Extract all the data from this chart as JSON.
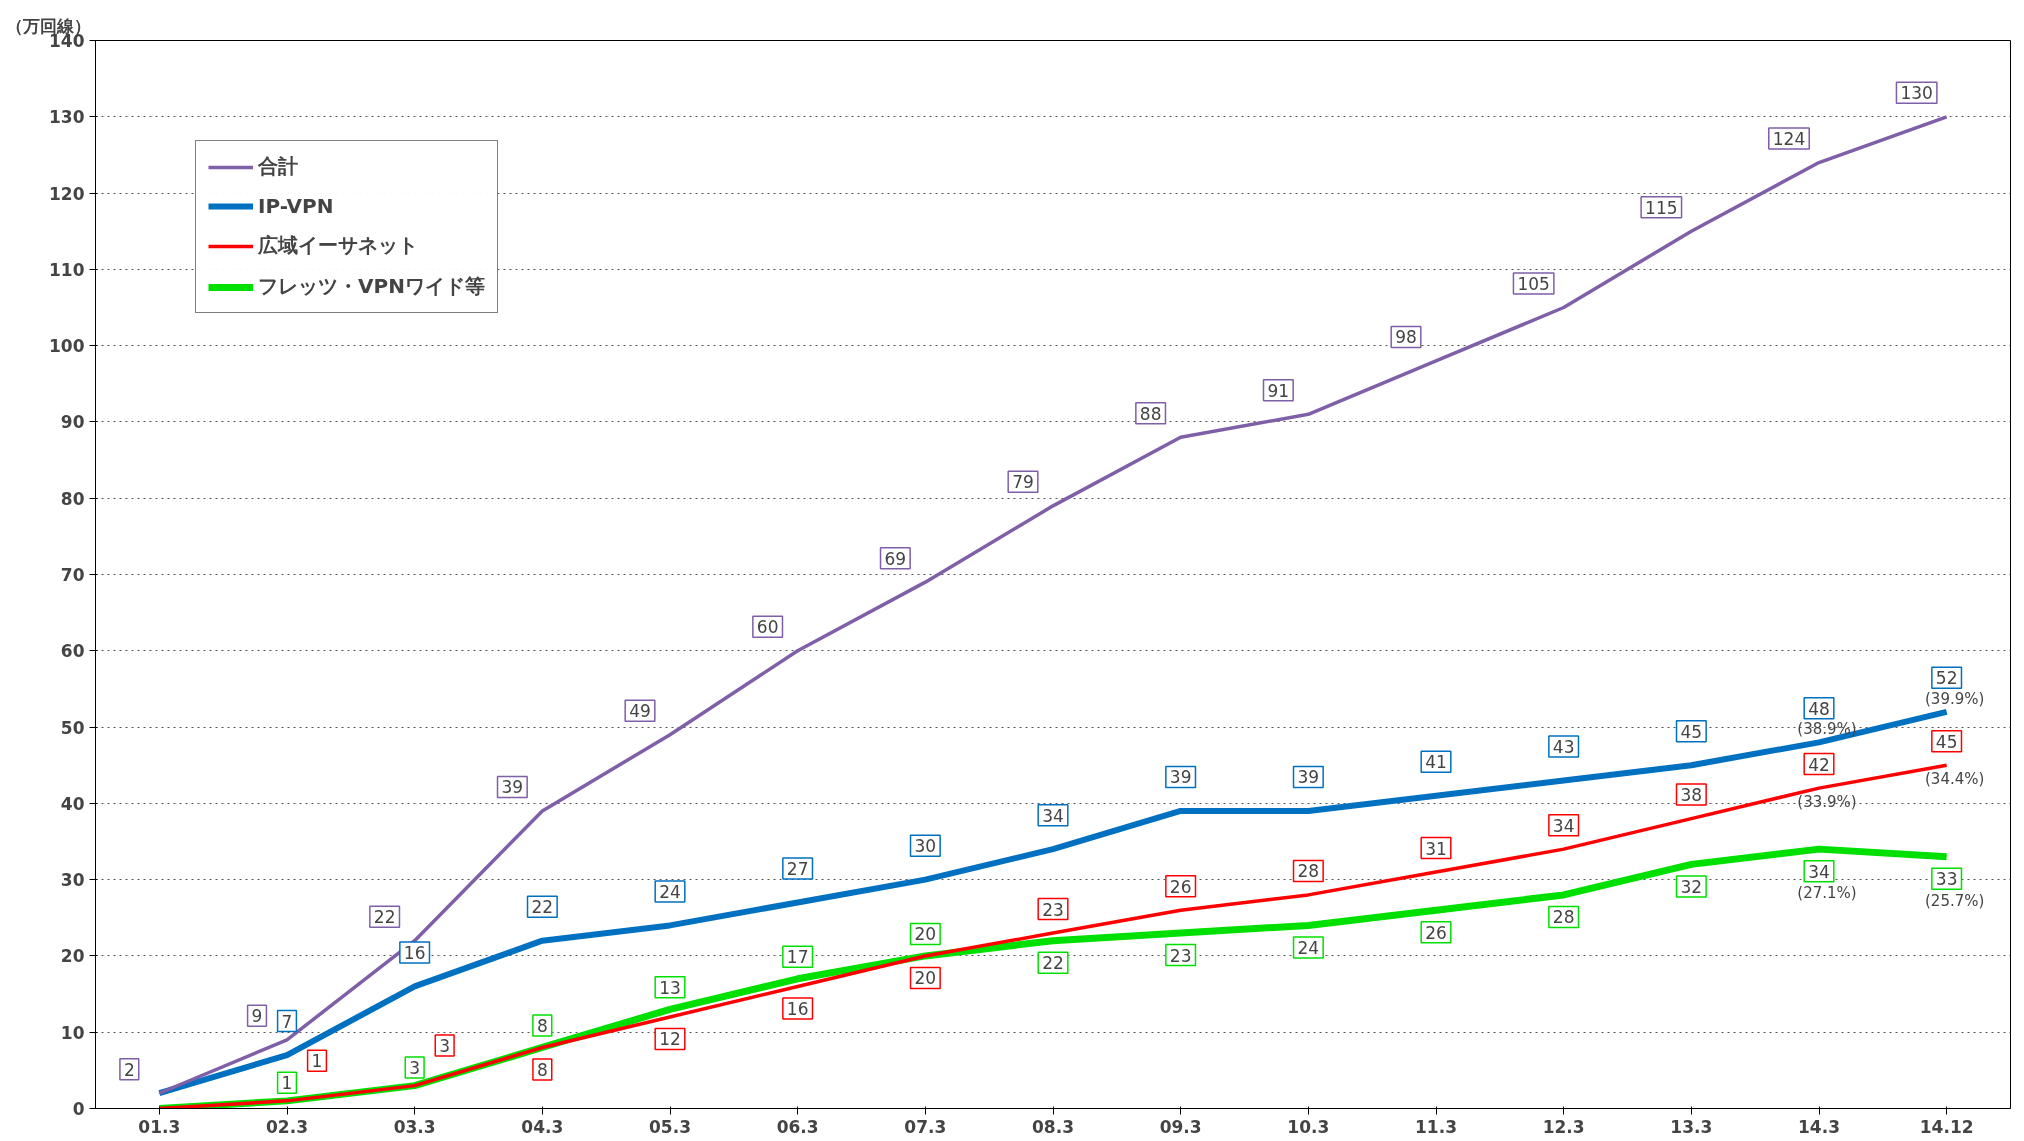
{
  "chart_data": {
    "type": "line",
    "ylabel": "（万回線）",
    "categories": [
      "01.3",
      "02.3",
      "03.3",
      "04.3",
      "05.3",
      "06.3",
      "07.3",
      "08.3",
      "09.3",
      "10.3",
      "11.3",
      "12.3",
      "13.3",
      "14.3",
      "14.12"
    ],
    "series": [
      {
        "name": "合計",
        "color": "#7f5fa8",
        "values": [
          2,
          9,
          22,
          39,
          49,
          60,
          69,
          79,
          88,
          91,
          98,
          105,
          115,
          124,
          130
        ]
      },
      {
        "name": "IP-VPN",
        "color": "#0070c0",
        "values": [
          2,
          7,
          16,
          22,
          24,
          27,
          30,
          34,
          39,
          39,
          41,
          43,
          45,
          48,
          52
        ],
        "value_labels": [
          null,
          "7",
          "16",
          "22",
          "24",
          "27",
          "30",
          "34",
          "39",
          "39",
          "41",
          "43",
          "45",
          "48",
          "52"
        ]
      },
      {
        "name": "広域イーサネット",
        "color": "#ff0000",
        "values": [
          0,
          1,
          3,
          8,
          12,
          16,
          20,
          23,
          26,
          28,
          31,
          34,
          38,
          42,
          45
        ],
        "value_labels": [
          null,
          "1",
          "3",
          "8",
          "12",
          "16",
          "20",
          "23",
          "26",
          "28",
          "31",
          "34",
          "38",
          "42",
          "45"
        ]
      },
      {
        "name": "フレッツ・VPNワイド等",
        "color": "#00e000",
        "values": [
          0,
          1,
          3,
          8,
          13,
          17,
          20,
          22,
          23,
          24,
          26,
          28,
          32,
          34,
          33
        ],
        "value_labels": [
          null,
          "1",
          "3",
          "8",
          "13",
          "17",
          "20",
          "22",
          "23",
          "24",
          "26",
          "28",
          "32",
          "34",
          "33"
        ]
      }
    ],
    "data_labels": true,
    "ylim": [
      0,
      140
    ],
    "yticks": [
      0,
      10,
      20,
      30,
      40,
      50,
      60,
      70,
      80,
      90,
      100,
      110,
      120,
      130,
      140
    ],
    "grid": "y",
    "legend": "top left",
    "marker": "none",
    "line_style": "solid",
    "annotations": [
      "(38.9%)",
      "(33.9%)",
      "(27.1%)",
      "(39.9%)",
      "(34.4%)",
      "(25.7%)"
    ]
  }
}
